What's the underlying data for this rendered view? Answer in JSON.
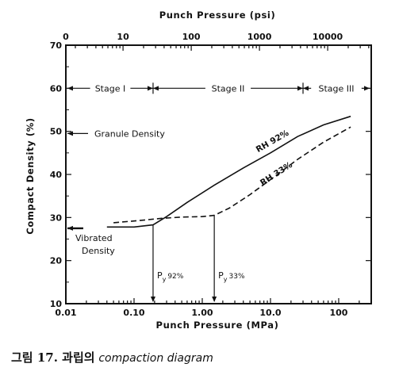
{
  "chart_data": {
    "type": "line",
    "x_scale": "log",
    "xlabel_bottom": "Punch Pressure (MPa)",
    "xlabel_top": "Punch Pressure (psi)",
    "ylabel": "Compact Density (%)",
    "xlim": [
      0.01,
      300
    ],
    "ylim": [
      10,
      70
    ],
    "grid": false,
    "bottom_ticks": [
      {
        "value": 0.01,
        "label": "0.01"
      },
      {
        "value": 0.1,
        "label": "0.10"
      },
      {
        "value": 1,
        "label": "1.00"
      },
      {
        "value": 10,
        "label": "10.0"
      },
      {
        "value": 100,
        "label": "100"
      }
    ],
    "top_ticks": [
      {
        "value": 0.01,
        "label": "0"
      },
      {
        "value": 0.0689,
        "label": "10"
      },
      {
        "value": 0.689,
        "label": "100"
      },
      {
        "value": 6.89,
        "label": "1000"
      },
      {
        "value": 68.9,
        "label": "10000"
      }
    ],
    "y_ticks": [
      10,
      20,
      30,
      40,
      50,
      60,
      70
    ],
    "series": [
      {
        "name": "RH 92%",
        "style": "solid",
        "x": [
          0.04,
          0.1,
          0.19,
          0.3,
          0.6,
          1.5,
          4,
          10,
          25,
          60,
          150
        ],
        "y": [
          27.8,
          27.8,
          28.3,
          30.2,
          33.5,
          37.5,
          41.5,
          45,
          48.8,
          51.5,
          53.5
        ]
      },
      {
        "name": "RH 33%",
        "style": "dashed",
        "x": [
          0.05,
          0.12,
          0.25,
          0.5,
          1.0,
          1.5,
          2.5,
          5,
          10,
          25,
          60,
          150
        ],
        "y": [
          28.8,
          29.3,
          29.8,
          30.1,
          30.2,
          30.5,
          32.2,
          35.3,
          38.8,
          43.5,
          47.5,
          51
        ]
      }
    ],
    "curve_labels": [
      "RH 92%",
      "RH 33%"
    ],
    "stages": [
      {
        "label": "Stage I",
        "from": 0.01,
        "to": 0.19
      },
      {
        "label": "Stage II",
        "from": 0.19,
        "to": 30
      },
      {
        "label": "Stage III",
        "from": 30,
        "to": 300
      }
    ],
    "stage_y": 60,
    "stage_boundaries": [
      0.19,
      30
    ],
    "granule_density": {
      "label": "Granule Density",
      "y": 49.5
    },
    "vibrated_density": {
      "label_lines": [
        "Vibrated",
        "Density"
      ],
      "y": 27.5
    },
    "py_markers": [
      {
        "label": "P",
        "sub": "y",
        "suffix": "92%",
        "x": 0.19,
        "y_top": 28.3
      },
      {
        "label": "P",
        "sub": "y",
        "suffix": "33%",
        "x": 1.5,
        "y_top": 30.5
      }
    ]
  },
  "caption": {
    "prefix": "그림 17. 과립의",
    "italic": "compaction diagram"
  }
}
